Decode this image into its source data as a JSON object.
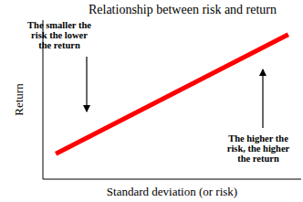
{
  "chart_data": {
    "type": "line",
    "title": "Relationship between risk and return",
    "x_label": "Standard deviation (or risk)",
    "y_label": "Return",
    "x": [
      0.5,
      9.5
    ],
    "values": [
      1.6,
      9.1
    ],
    "color": "#ff0000",
    "xlim": [
      0,
      10
    ],
    "ylim": [
      0,
      10
    ],
    "tick_labels": false,
    "grid": false,
    "annotations": [
      {
        "lines": [
          "The smaller the",
          "risk the lower",
          "the return"
        ]
      },
      {
        "lines": [
          "The higher the",
          "risk, the higher",
          "the return"
        ]
      }
    ]
  }
}
